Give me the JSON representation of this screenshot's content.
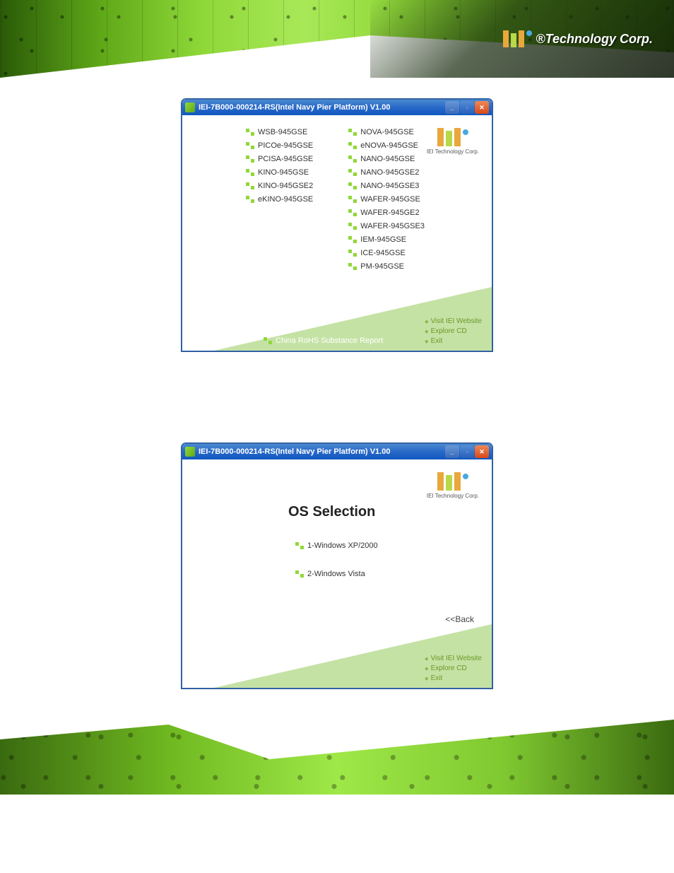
{
  "header": {
    "company_text": "®Technology Corp."
  },
  "window1": {
    "title": "IEI-7B000-000214-RS(Intel Navy Pier Platform) V1.00",
    "logo_caption": "IEI Technology Corp.",
    "col1": [
      "WSB-945GSE",
      "PICOe-945GSE",
      "PCISA-945GSE",
      "KINO-945GSE",
      "KINO-945GSE2",
      "eKINO-945GSE"
    ],
    "col2": [
      "NOVA-945GSE",
      "eNOVA-945GSE",
      "NANO-945GSE",
      "NANO-945GSE2",
      "NANO-945GSE3",
      "WAFER-945GSE",
      "WAFER-945GE2",
      "WAFER-945GSE3",
      "IEM-945GSE",
      "ICE-945GSE",
      "PM-945GSE"
    ],
    "rohs_label": "China RoHS Substance Report",
    "side_links": [
      "Visit IEI Website",
      "Explore CD",
      "Exit"
    ]
  },
  "window2": {
    "title": "IEI-7B000-000214-RS(Intel Navy Pier Platform) V1.00",
    "logo_caption": "IEI Technology Corp.",
    "heading": "OS Selection",
    "os_options": [
      "1-Windows XP/2000",
      "2-Windows Vista"
    ],
    "back_label": "<<Back",
    "side_links": [
      "Visit IEI Website",
      "Explore CD",
      "Exit"
    ]
  },
  "colors": {
    "xp_blue_light": "#4a8ad0",
    "xp_blue_dark": "#1058c0",
    "close_red": "#d84818",
    "iei_green": "#8fd838",
    "link_green": "#6a9828",
    "triangle_fill": "#c5e2a5"
  }
}
